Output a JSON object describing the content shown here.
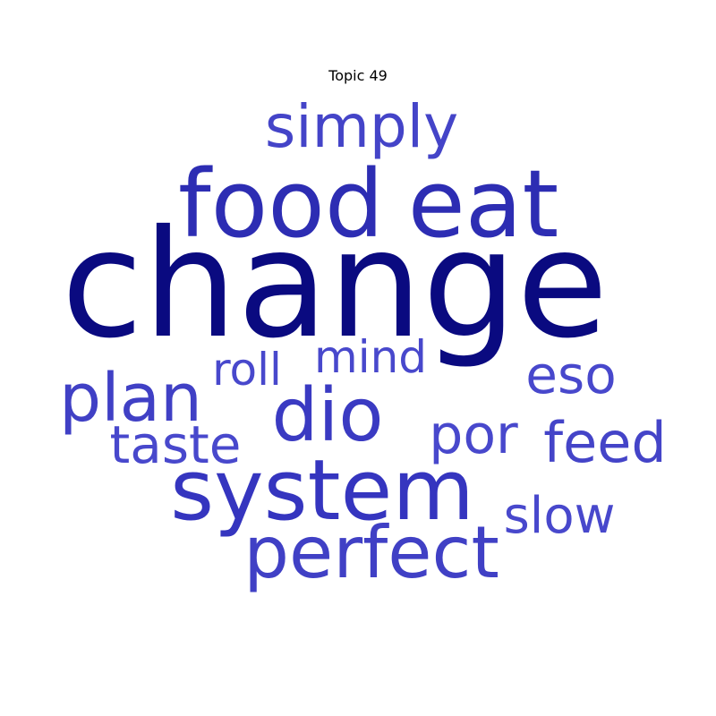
{
  "chart_data": {
    "type": "wordcloud",
    "title": "Topic 49",
    "words": [
      {
        "text": "change",
        "color": "#0a0a80"
      },
      {
        "text": "food",
        "color": "#2d2db3"
      },
      {
        "text": "eat",
        "color": "#2d2db3"
      },
      {
        "text": "system",
        "color": "#3535bf"
      },
      {
        "text": "simply",
        "color": "#4444c8"
      },
      {
        "text": "perfect",
        "color": "#4040c5"
      },
      {
        "text": "dio",
        "color": "#3a3ac2"
      },
      {
        "text": "plan",
        "color": "#4040c5"
      },
      {
        "text": "taste",
        "color": "#4848cc"
      },
      {
        "text": "feed",
        "color": "#4444c8"
      },
      {
        "text": "por",
        "color": "#4848cc"
      },
      {
        "text": "eso",
        "color": "#4848cc"
      },
      {
        "text": "mind",
        "color": "#4848cc"
      },
      {
        "text": "roll",
        "color": "#4848cc"
      },
      {
        "text": "slow",
        "color": "#4848cc"
      }
    ]
  }
}
